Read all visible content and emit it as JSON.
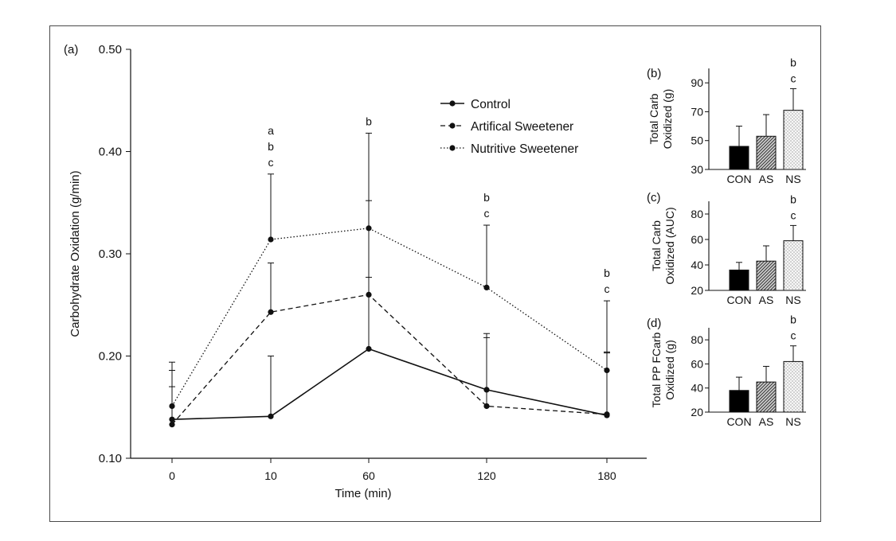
{
  "chart_data": [
    {
      "panel_label": "(a)",
      "type": "line",
      "xlabel": "Time (min)",
      "ylabel": "Carbohydrate Oxidation (g/min)",
      "categories": [
        "0",
        "10",
        "60",
        "120",
        "180"
      ],
      "ylim": [
        0.1,
        0.5
      ],
      "yticks": [
        "0.10",
        "0.20",
        "0.30",
        "0.40",
        "0.50"
      ],
      "ytick_values": [
        0.1,
        0.2,
        0.3,
        0.4,
        0.5
      ],
      "legend_position": "top-right",
      "series": [
        {
          "name": "Control",
          "style": "solid",
          "values": [
            0.138,
            0.141,
            0.207,
            0.167,
            0.142
          ],
          "error_upper": [
            0.17,
            0.2,
            0.277,
            0.218,
            0.203
          ]
        },
        {
          "name": "Artifical Sweetener",
          "style": "dashed",
          "values": [
            0.133,
            0.243,
            0.26,
            0.151,
            0.143
          ],
          "error_upper": [
            0.186,
            0.291,
            0.352,
            0.222,
            0.204
          ]
        },
        {
          "name": "Nutritive Sweetener",
          "style": "dotted",
          "values": [
            0.151,
            0.314,
            0.325,
            0.267,
            0.186
          ],
          "error_upper": [
            0.194,
            0.378,
            0.418,
            0.328,
            0.254
          ]
        }
      ],
      "annotations": [
        {
          "x": "10",
          "lines": [
            "a",
            "b",
            "c"
          ]
        },
        {
          "x": "60",
          "lines": [
            "b"
          ]
        },
        {
          "x": "120",
          "lines": [
            "b",
            "c"
          ]
        },
        {
          "x": "180",
          "lines": [
            "b",
            "c"
          ]
        }
      ]
    },
    {
      "panel_label": "(b)",
      "type": "bar",
      "ylabel_lines": [
        "Total Carb",
        "Oxidized (g)"
      ],
      "categories": [
        "CON",
        "AS",
        "NS"
      ],
      "values": [
        46,
        53,
        71
      ],
      "error_upper": [
        60,
        68,
        86
      ],
      "ylim": [
        30,
        100
      ],
      "yticks": [
        "30",
        "50",
        "70",
        "90"
      ],
      "ytick_values": [
        30,
        50,
        70,
        90
      ],
      "annotation": {
        "category": "NS",
        "lines": [
          "b",
          "c"
        ]
      }
    },
    {
      "panel_label": "(c)",
      "type": "bar",
      "ylabel_lines": [
        "Total Carb",
        "Oxidized (AUC)"
      ],
      "categories": [
        "CON",
        "AS",
        "NS"
      ],
      "values": [
        36,
        43,
        59
      ],
      "error_upper": [
        42,
        55,
        71
      ],
      "ylim": [
        20,
        90
      ],
      "yticks": [
        "20",
        "40",
        "60",
        "80"
      ],
      "ytick_values": [
        20,
        40,
        60,
        80
      ],
      "annotation": {
        "category": "NS",
        "lines": [
          "b",
          "c"
        ]
      }
    },
    {
      "panel_label": "(d)",
      "type": "bar",
      "ylabel_lines": [
        "Total PP FCarb",
        "Oxidized (g)"
      ],
      "categories": [
        "CON",
        "AS",
        "NS"
      ],
      "values": [
        38,
        45,
        62
      ],
      "error_upper": [
        49,
        58,
        75
      ],
      "ylim": [
        20,
        90
      ],
      "yticks": [
        "20",
        "40",
        "60",
        "80"
      ],
      "ytick_values": [
        20,
        40,
        60,
        80
      ],
      "annotation": {
        "category": "NS",
        "lines": [
          "b",
          "c"
        ]
      }
    }
  ],
  "colors": {
    "line": "#111111",
    "bar_con": "#000000",
    "bar_as": "#8a8a8a",
    "bar_ns": "#f2f2f2"
  }
}
